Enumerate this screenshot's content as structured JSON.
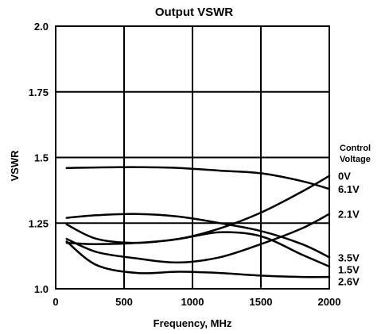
{
  "chart_data": {
    "type": "line",
    "title": "Output VSWR",
    "xlabel": "Frequency, MHz",
    "ylabel": "VSWR",
    "xlim": [
      0,
      2000
    ],
    "ylim": [
      1.0,
      2.0
    ],
    "x_ticks": [
      0,
      500,
      1000,
      1500,
      2000
    ],
    "x_tick_labels": [
      "0",
      "500",
      "1000",
      "1500",
      "2000"
    ],
    "y_ticks": [
      1.0,
      1.25,
      1.5,
      1.75,
      2.0
    ],
    "y_tick_labels": [
      "1.0",
      "1.25",
      "1.5",
      "1.75",
      "2.0"
    ],
    "grid": true,
    "legend_title": [
      "Control",
      "Voltage"
    ],
    "series": [
      {
        "name": "0V",
        "x": [
          80,
          300,
          600,
          900,
          1200,
          1500,
          1800,
          2000
        ],
        "y": [
          1.175,
          1.17,
          1.175,
          1.19,
          1.23,
          1.29,
          1.37,
          1.43
        ]
      },
      {
        "name": "6.1V",
        "x": [
          80,
          300,
          600,
          900,
          1200,
          1500,
          1800,
          2000
        ],
        "y": [
          1.46,
          1.462,
          1.463,
          1.46,
          1.45,
          1.44,
          1.41,
          1.38
        ]
      },
      {
        "name": "2.1V",
        "x": [
          80,
          300,
          600,
          900,
          1200,
          1500,
          1800,
          2000
        ],
        "y": [
          1.19,
          1.14,
          1.115,
          1.1,
          1.12,
          1.17,
          1.23,
          1.285
        ]
      },
      {
        "name": "3.5V",
        "x": [
          80,
          300,
          600,
          900,
          1200,
          1500,
          1800,
          2000
        ],
        "y": [
          1.27,
          1.28,
          1.285,
          1.275,
          1.25,
          1.22,
          1.17,
          1.12
        ]
      },
      {
        "name": "1.5V",
        "x": [
          80,
          300,
          600,
          900,
          1200,
          1500,
          1800,
          2000
        ],
        "y": [
          1.245,
          1.19,
          1.175,
          1.19,
          1.215,
          1.2,
          1.13,
          1.085
        ]
      },
      {
        "name": "2.6V",
        "x": [
          80,
          300,
          600,
          900,
          1200,
          1500,
          1800,
          2000
        ],
        "y": [
          1.18,
          1.09,
          1.06,
          1.065,
          1.06,
          1.05,
          1.045,
          1.045
        ]
      }
    ]
  }
}
